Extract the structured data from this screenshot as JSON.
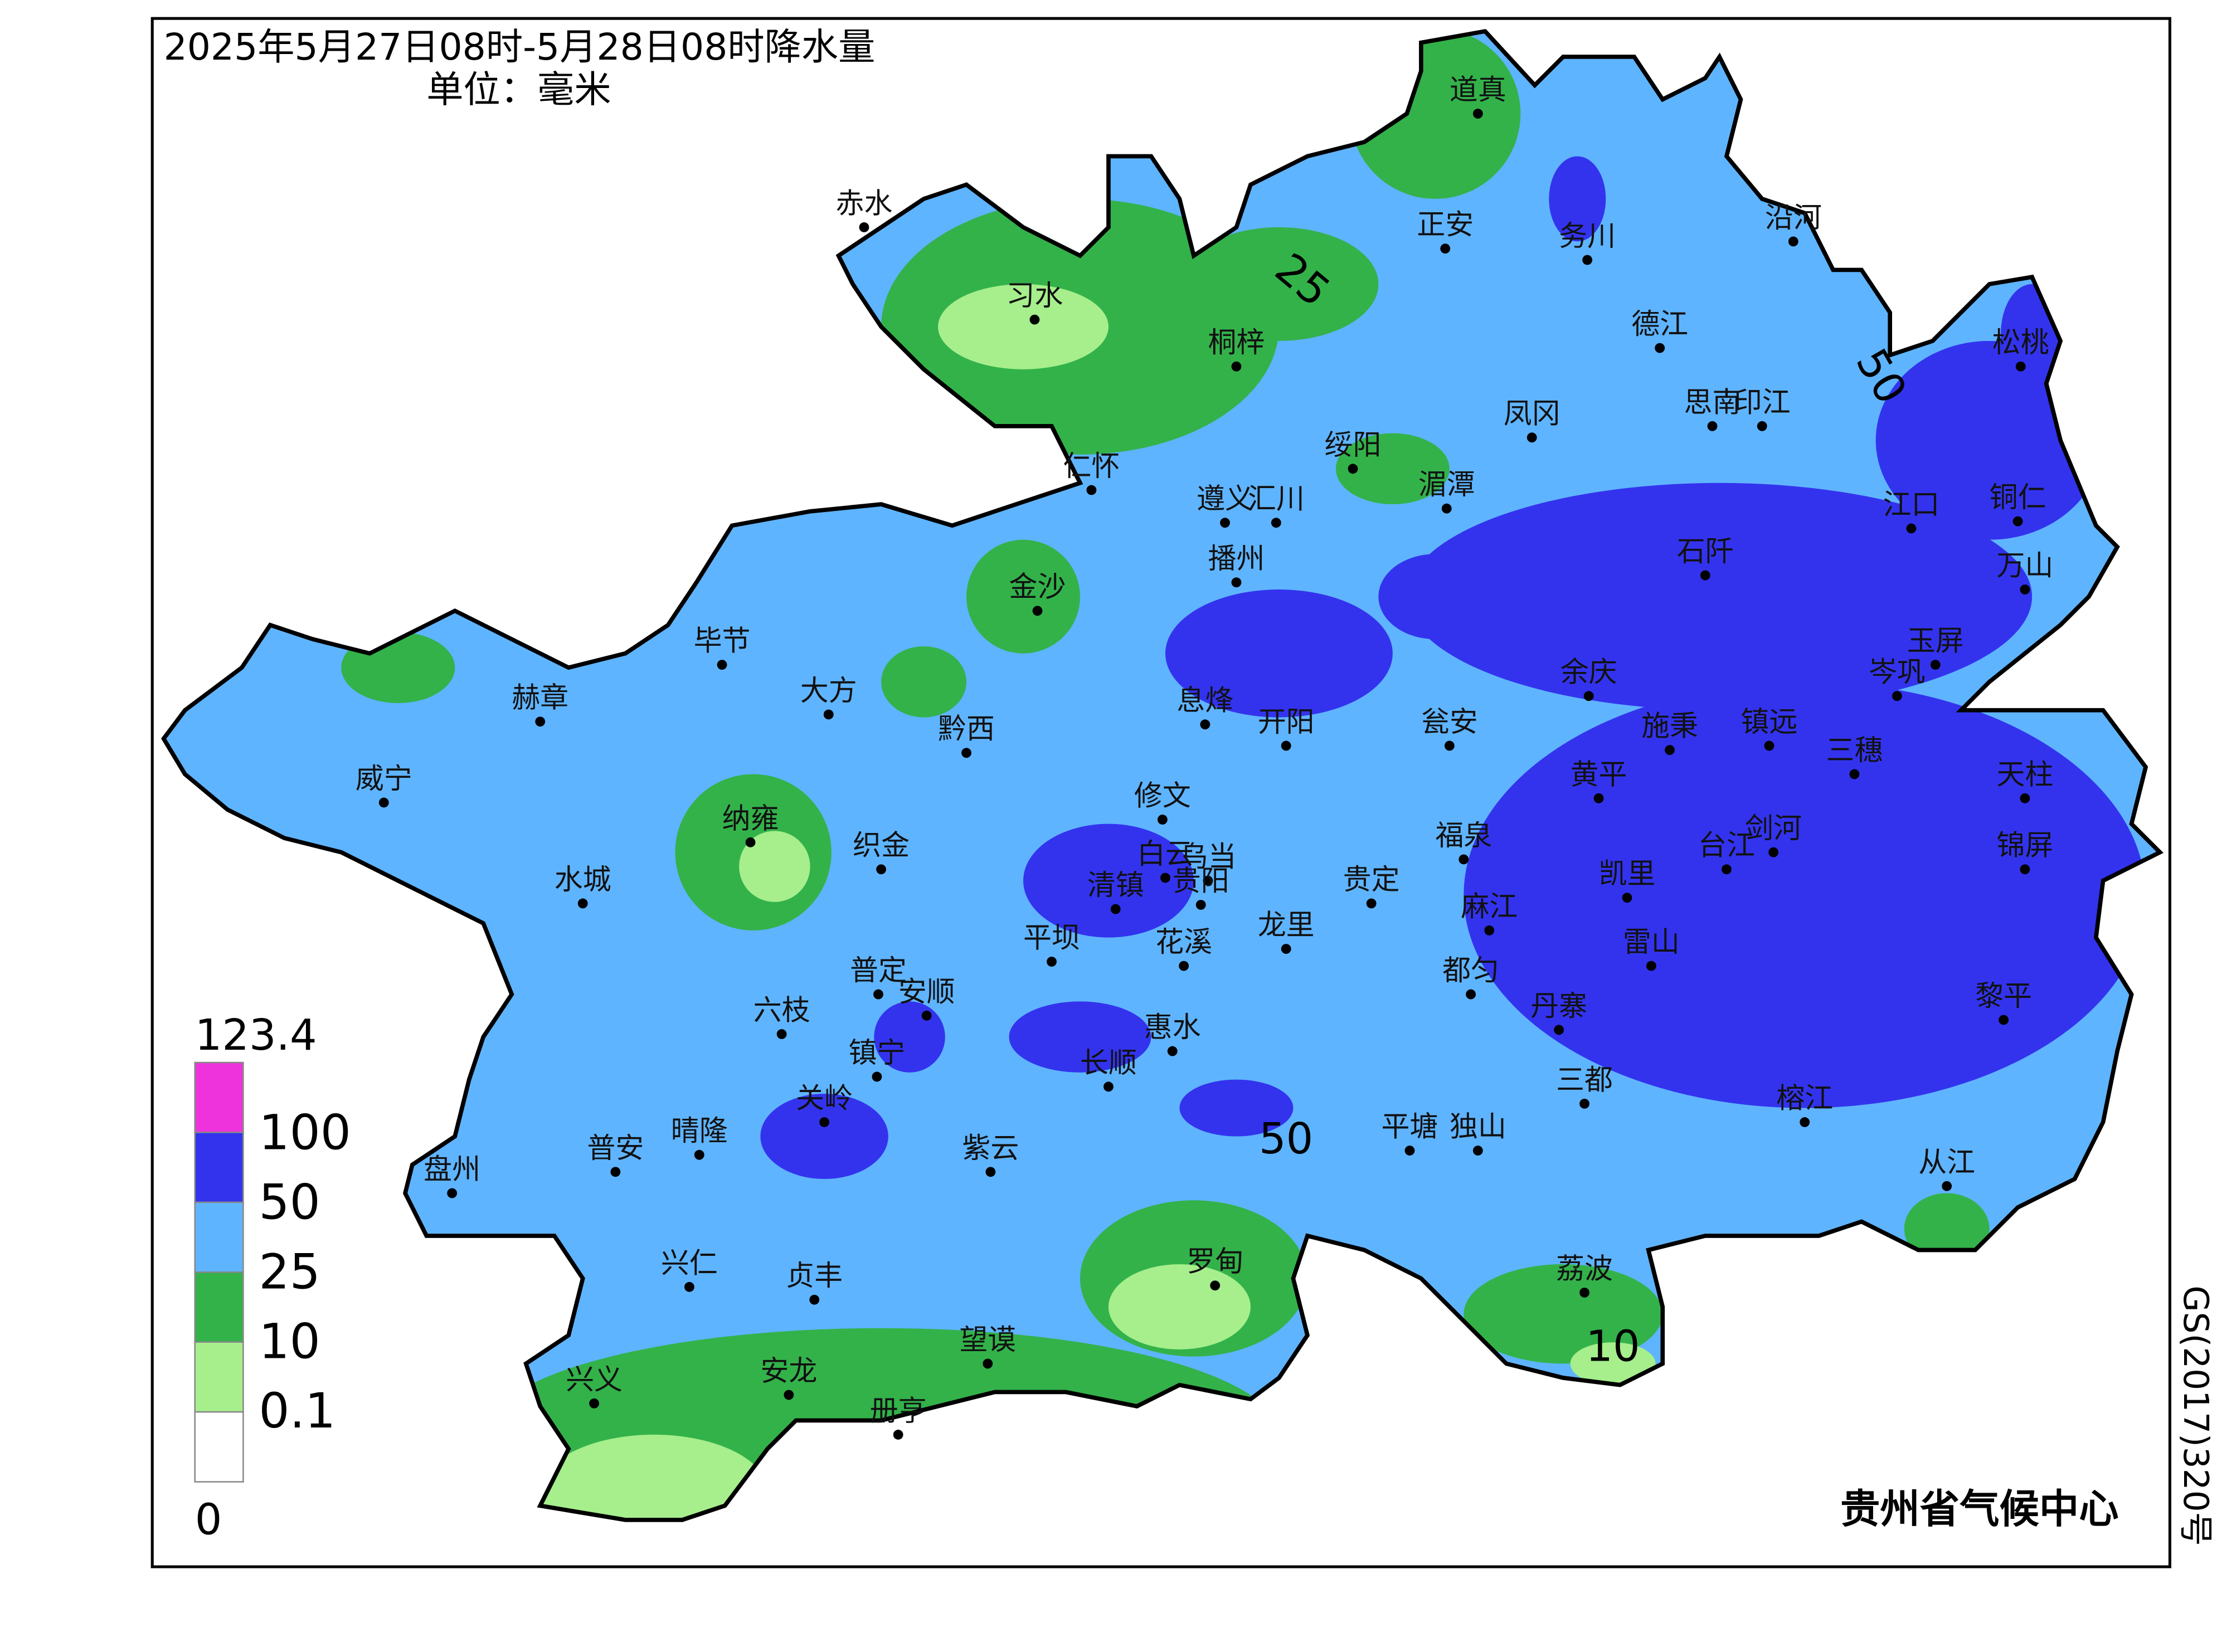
{
  "header": {
    "title": "2025年5月27日08时-5月28日08时降水量",
    "unit": "单位：毫米"
  },
  "legend": {
    "ticks": [
      123.4,
      100,
      50,
      25,
      10,
      0.1,
      0
    ],
    "colors": [
      "#ee33dd",
      "#3333ee",
      "#5fb4ff",
      "#33b24a",
      "#a6ef8c",
      "#ffffff"
    ]
  },
  "map": {
    "cities": [
      "道真",
      "正安",
      "务川",
      "沿河",
      "赤水",
      "习水",
      "桐梓",
      "德江",
      "松桃",
      "凤冈",
      "思南",
      "印江",
      "绥阳",
      "湄潭",
      "仁怀",
      "遵义",
      "汇川",
      "江口",
      "铜仁",
      "播州",
      "石阡",
      "万山",
      "金沙",
      "毕节",
      "余庆",
      "岑巩",
      "玉屏",
      "赫章",
      "大方",
      "息烽",
      "开阳",
      "瓮安",
      "施秉",
      "镇远",
      "三穗",
      "黔西",
      "威宁",
      "天柱",
      "修文",
      "黄平",
      "纳雍",
      "织金",
      "福泉",
      "白云",
      "乌当",
      "剑河",
      "锦屏",
      "台江",
      "水城",
      "清镇",
      "贵阳",
      "贵定",
      "凯里",
      "麻江",
      "花溪",
      "龙里",
      "雷山",
      "平坝",
      "普定",
      "安顺",
      "都匀",
      "丹寨",
      "黎平",
      "六枝",
      "惠水",
      "镇宁",
      "长顺",
      "三都",
      "榕江",
      "关岭",
      "晴隆",
      "普安",
      "平塘",
      "独山",
      "紫云",
      "盘州",
      "从江",
      "兴仁",
      "贞丰",
      "罗甸",
      "荔波",
      "望谟",
      "安龙",
      "兴义",
      "册亨"
    ],
    "contour_labels": [
      25,
      50,
      50,
      10
    ],
    "credit": "贵州省气候中心",
    "approval": "GS(2017)320号"
  }
}
